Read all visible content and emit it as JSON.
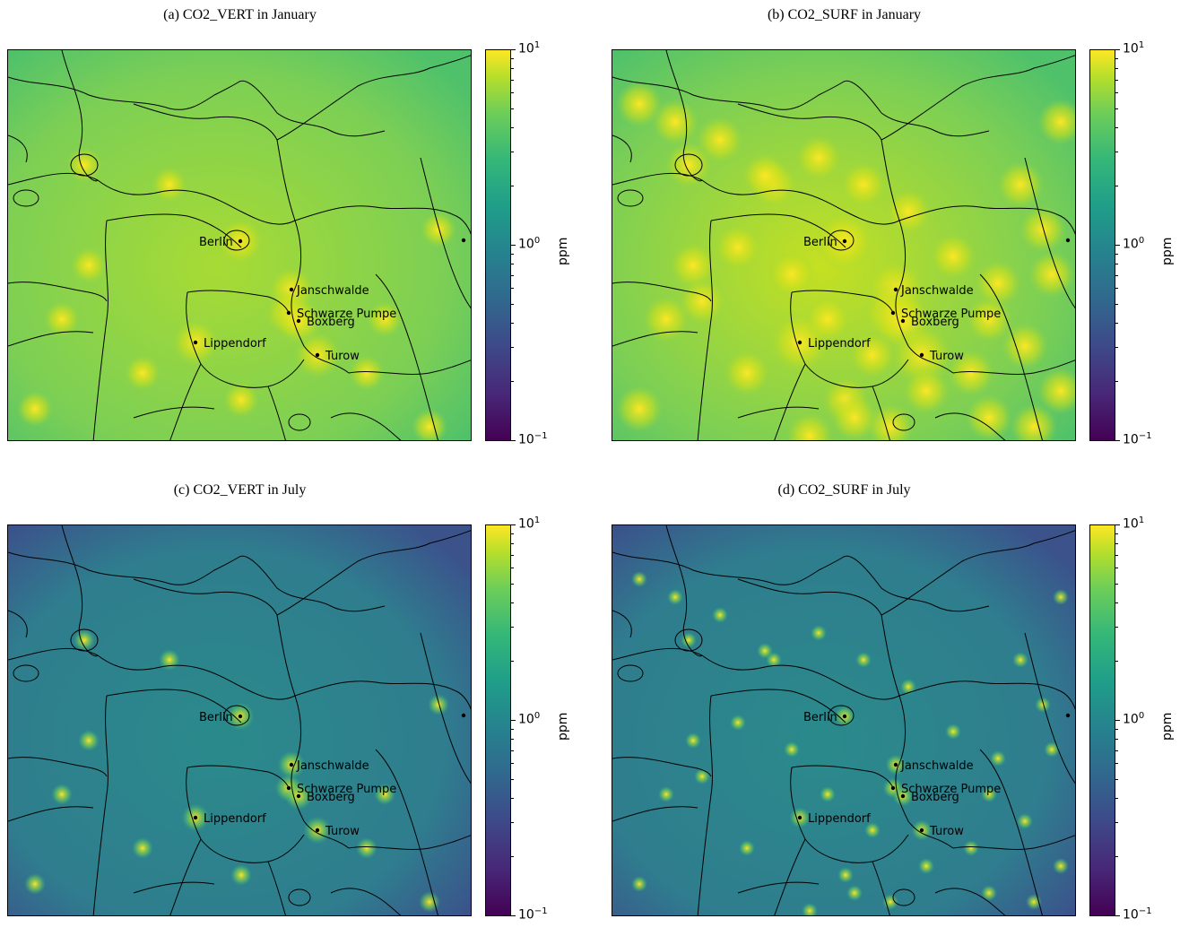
{
  "panels": [
    {
      "id": "a",
      "title": "(a) CO2_VERT in January",
      "month": "January",
      "variable": "CO2_VERT"
    },
    {
      "id": "b",
      "title": "(b) CO2_SURF in January",
      "month": "January",
      "variable": "CO2_SURF"
    },
    {
      "id": "c",
      "title": "(c) CO2_VERT in July",
      "month": "July",
      "variable": "CO2_VERT"
    },
    {
      "id": "d",
      "title": "(d) CO2_SURF in July",
      "month": "July",
      "variable": "CO2_SURF"
    }
  ],
  "sites": [
    {
      "name": "Berlin"
    },
    {
      "name": "Janschwalde"
    },
    {
      "name": "Schwarze Pumpe"
    },
    {
      "name": "Boxberg"
    },
    {
      "name": "Lippendorf"
    },
    {
      "name": "Turow"
    }
  ],
  "colorbar": {
    "label": "ppm",
    "colormap": "viridis",
    "scale": "log",
    "range": [
      0.1,
      10
    ],
    "tick_base": "10",
    "tick_exponents": [
      "1",
      "0",
      "−1"
    ]
  },
  "colors": {
    "jan_background": "#7ccf55",
    "jul_background": "#2f7d8e",
    "hotspot": "#fde725",
    "border": "#000000"
  }
}
